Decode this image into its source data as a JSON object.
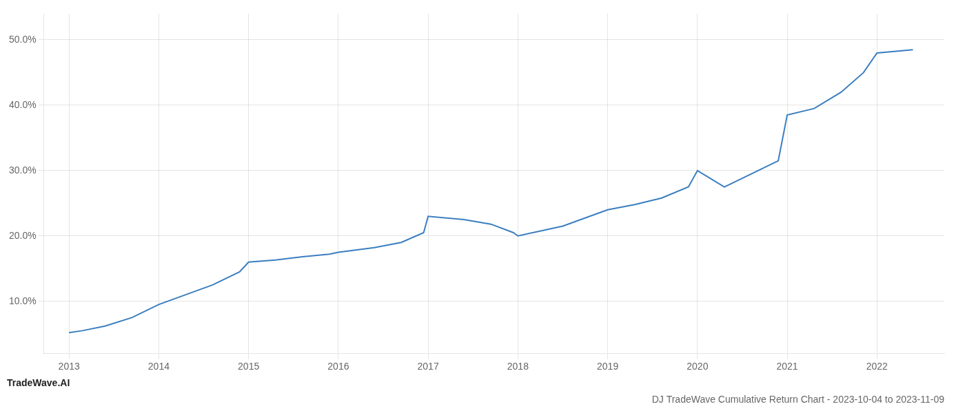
{
  "chart_data": {
    "type": "line",
    "title": "DJ TradeWave Cumulative Return Chart - 2023-10-04 to 2023-11-09",
    "annotations": [
      "TradeWave.AI"
    ],
    "x": [
      2013.0,
      2013.15,
      2013.4,
      2013.7,
      2014.0,
      2014.3,
      2014.6,
      2014.9,
      2015.0,
      2015.3,
      2015.6,
      2015.9,
      2016.0,
      2016.4,
      2016.7,
      2016.95,
      2017.0,
      2017.4,
      2017.7,
      2017.95,
      2018.0,
      2018.5,
      2018.9,
      2019.0,
      2019.3,
      2019.6,
      2019.9,
      2020.0,
      2020.3,
      2020.6,
      2020.9,
      2021.0,
      2021.3,
      2021.6,
      2021.85,
      2022.0,
      2022.4
    ],
    "values": [
      5.2,
      5.5,
      6.2,
      7.5,
      9.5,
      11.0,
      12.5,
      14.5,
      16.0,
      16.3,
      16.8,
      17.2,
      17.5,
      18.2,
      19.0,
      20.5,
      23.0,
      22.5,
      21.8,
      20.5,
      20.0,
      21.5,
      23.5,
      24.0,
      24.8,
      25.8,
      27.5,
      30.0,
      27.5,
      29.5,
      31.5,
      38.5,
      39.5,
      42.0,
      45.0,
      48.0,
      48.5
    ],
    "color": "#3a7ebf",
    "xlim": [
      2012.72,
      2022.75
    ],
    "xticks": [
      2013,
      2014,
      2015,
      2016,
      2017,
      2018,
      2019,
      2020,
      2021,
      2022
    ],
    "ylim": [
      2.0,
      54.0
    ],
    "yticks": [
      {
        "value": 10.0,
        "label": "10.0%"
      },
      {
        "value": 20.0,
        "label": "20.0%"
      },
      {
        "value": 30.0,
        "label": "30.0%"
      },
      {
        "value": 40.0,
        "label": "40.0%"
      },
      {
        "value": 50.0,
        "label": "50.0%"
      }
    ],
    "grid": true
  }
}
